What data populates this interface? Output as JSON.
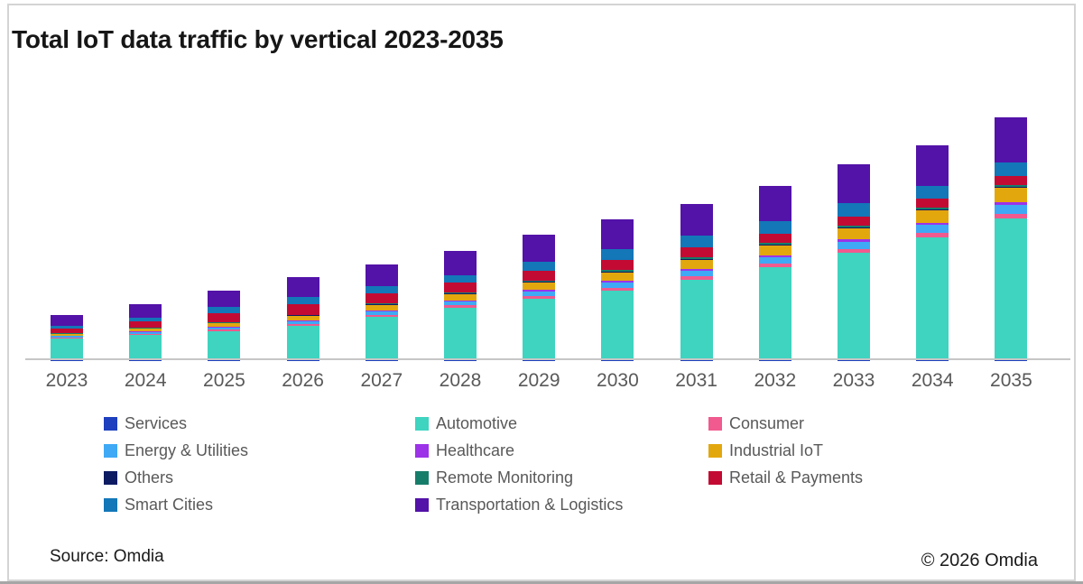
{
  "title": "Total IoT data traffic by vertical 2023-2035",
  "footer": {
    "source": "Source: Omdia",
    "copyright": "© 2026 Omdia"
  },
  "colors": {
    "axis_line": "#c6c6c6",
    "tick_label": "#595959",
    "legend_label": "#595959",
    "title_text": "#161616",
    "frame_border": "#d4d4d4",
    "bottom_edge": "#a6a6a6"
  },
  "chart_data": {
    "type": "bar",
    "stacked": true,
    "title": "Total IoT data traffic by vertical 2023-2035",
    "xlabel": "",
    "ylabel": "",
    "y_axis_visible": false,
    "grid": false,
    "legend_position": "bottom",
    "legend_columns": 3,
    "categories": [
      "2023",
      "2024",
      "2025",
      "2026",
      "2027",
      "2028",
      "2029",
      "2030",
      "2031",
      "2032",
      "2033",
      "2034",
      "2035"
    ],
    "series": [
      {
        "name": "Services",
        "color": "#1e3fbe",
        "values": [
          0.3,
          0.3,
          0.3,
          0.3,
          0.3,
          0.3,
          0.3,
          0.3,
          0.3,
          0.3,
          0.3,
          0.3,
          0.3
        ]
      },
      {
        "name": "Automotive",
        "color": "#3ed4c0",
        "values": [
          24,
          28,
          32,
          38,
          48,
          58,
          68,
          77,
          89,
          103,
          119,
          136,
          157
        ]
      },
      {
        "name": "Consumer",
        "color": "#f05a8e",
        "values": [
          1,
          1.2,
          1.5,
          1.8,
          2.1,
          2.4,
          2.7,
          3,
          3.4,
          3.8,
          4.2,
          4.4,
          5
        ]
      },
      {
        "name": "Energy & Utilities",
        "color": "#3fa9f5",
        "values": [
          1.5,
          2,
          2.5,
          3,
          3.7,
          4.3,
          5,
          5.7,
          6.4,
          7.1,
          8,
          9,
          10
        ]
      },
      {
        "name": "Healthcare",
        "color": "#9c33e8",
        "values": [
          0.4,
          0.6,
          0.8,
          1,
          1.2,
          1.4,
          1.6,
          1.9,
          2.1,
          2.3,
          2.5,
          2.6,
          3
        ]
      },
      {
        "name": "Industrial IoT",
        "color": "#e3a70e",
        "values": [
          2,
          2.8,
          4,
          5,
          6,
          7,
          8.5,
          9.6,
          10.3,
          11,
          12,
          14,
          16
        ]
      },
      {
        "name": "Others",
        "color": "#0d1b63",
        "values": [
          0.3,
          0.35,
          0.4,
          0.45,
          0.5,
          0.55,
          0.6,
          0.7,
          0.75,
          0.8,
          0.9,
          0.95,
          1
        ]
      },
      {
        "name": "Remote Monitoring",
        "color": "#177d6b",
        "values": [
          0.5,
          0.6,
          0.75,
          0.9,
          1,
          1.2,
          1.3,
          1.5,
          1.6,
          1.7,
          1.8,
          1.9,
          2
        ]
      },
      {
        "name": "Retail & Payments",
        "color": "#c30a33",
        "values": [
          5,
          7,
          10,
          12,
          11.5,
          11,
          11,
          11,
          11,
          10.5,
          10,
          9.5,
          10
        ]
      },
      {
        "name": "Smart Cities",
        "color": "#1377b8",
        "values": [
          2.7,
          4,
          7,
          7.5,
          8,
          8,
          10.5,
          12,
          13,
          13.5,
          15,
          14.5,
          15
        ]
      },
      {
        "name": "Transportation & Logistics",
        "color": "#5312a8",
        "values": [
          12,
          15,
          18,
          22,
          23.5,
          27,
          30,
          33,
          35.5,
          39.5,
          43,
          45,
          50
        ]
      }
    ]
  }
}
